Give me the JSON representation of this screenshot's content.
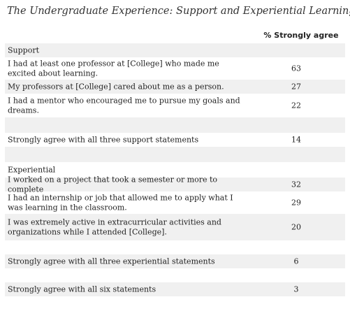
{
  "title": "The Undergraduate Experience: Support and Experiential Learning",
  "column_header": "% Strongly agree",
  "chart_data": {
    "type": "table",
    "title": "The Undergraduate Experience: Support and Experiential Learning",
    "columns": [
      "",
      "% Strongly agree"
    ],
    "rows": [
      {
        "kind": "section",
        "label": "Support",
        "value": ""
      },
      {
        "kind": "item",
        "label": "I had at least one professor at [College] who made me excited about learning.",
        "value": "63"
      },
      {
        "kind": "item",
        "label": "My professors at [College] cared about me as a person.",
        "value": "27"
      },
      {
        "kind": "item",
        "label": "I had a mentor who encouraged me to pursue my goals and dreams.",
        "value": "22"
      },
      {
        "kind": "spacer",
        "label": "",
        "value": ""
      },
      {
        "kind": "summary",
        "label": "Strongly agree with all three support statements",
        "value": "14"
      },
      {
        "kind": "spacer",
        "label": "",
        "value": ""
      },
      {
        "kind": "section",
        "label": "Experiential",
        "value": ""
      },
      {
        "kind": "item",
        "label": "I worked on a project that took a semester or more to complete",
        "value": "32"
      },
      {
        "kind": "item",
        "label": "I had an internship or job that allowed me to apply what I was learning in the classroom.",
        "value": "29"
      },
      {
        "kind": "item",
        "label": "I was extremely active in extracurricular activities and organizations while I attended [College].",
        "value": "20"
      },
      {
        "kind": "spacer",
        "label": "",
        "value": ""
      },
      {
        "kind": "summary",
        "label": "Strongly agree with all three experiential statements",
        "value": "6"
      },
      {
        "kind": "spacer",
        "label": "",
        "value": ""
      },
      {
        "kind": "summary",
        "label": "Strongly agree with all six statements",
        "value": "3"
      }
    ]
  }
}
